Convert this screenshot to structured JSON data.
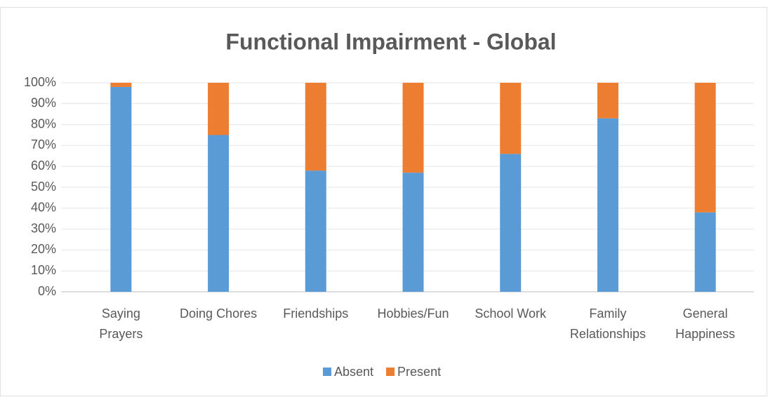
{
  "chart_data": {
    "type": "stacked_bar",
    "title": "Functional Impairment - Global",
    "categories": [
      "Saying Prayers",
      "Doing Chores",
      "Friendships",
      "Hobbies/Fun",
      "School Work",
      "Family Relationships",
      "General Happiness"
    ],
    "series": [
      {
        "name": "Absent",
        "color": "#5b9bd5",
        "values": [
          98,
          75,
          58,
          57,
          66,
          83,
          38
        ]
      },
      {
        "name": "Present",
        "color": "#ed7d31",
        "values": [
          2,
          25,
          42,
          43,
          34,
          17,
          62
        ]
      }
    ],
    "ylim": [
      0,
      100
    ],
    "yticks": [
      {
        "value": 0,
        "label": "0%"
      },
      {
        "value": 10,
        "label": "10%"
      },
      {
        "value": 20,
        "label": "20%"
      },
      {
        "value": 30,
        "label": "30%"
      },
      {
        "value": 40,
        "label": "40%"
      },
      {
        "value": 50,
        "label": "50%"
      },
      {
        "value": 60,
        "label": "60%"
      },
      {
        "value": 70,
        "label": "70%"
      },
      {
        "value": 80,
        "label": "80%"
      },
      {
        "value": 90,
        "label": "90%"
      },
      {
        "value": 100,
        "label": "100%"
      }
    ],
    "grid": true,
    "legend": "bottom"
  }
}
